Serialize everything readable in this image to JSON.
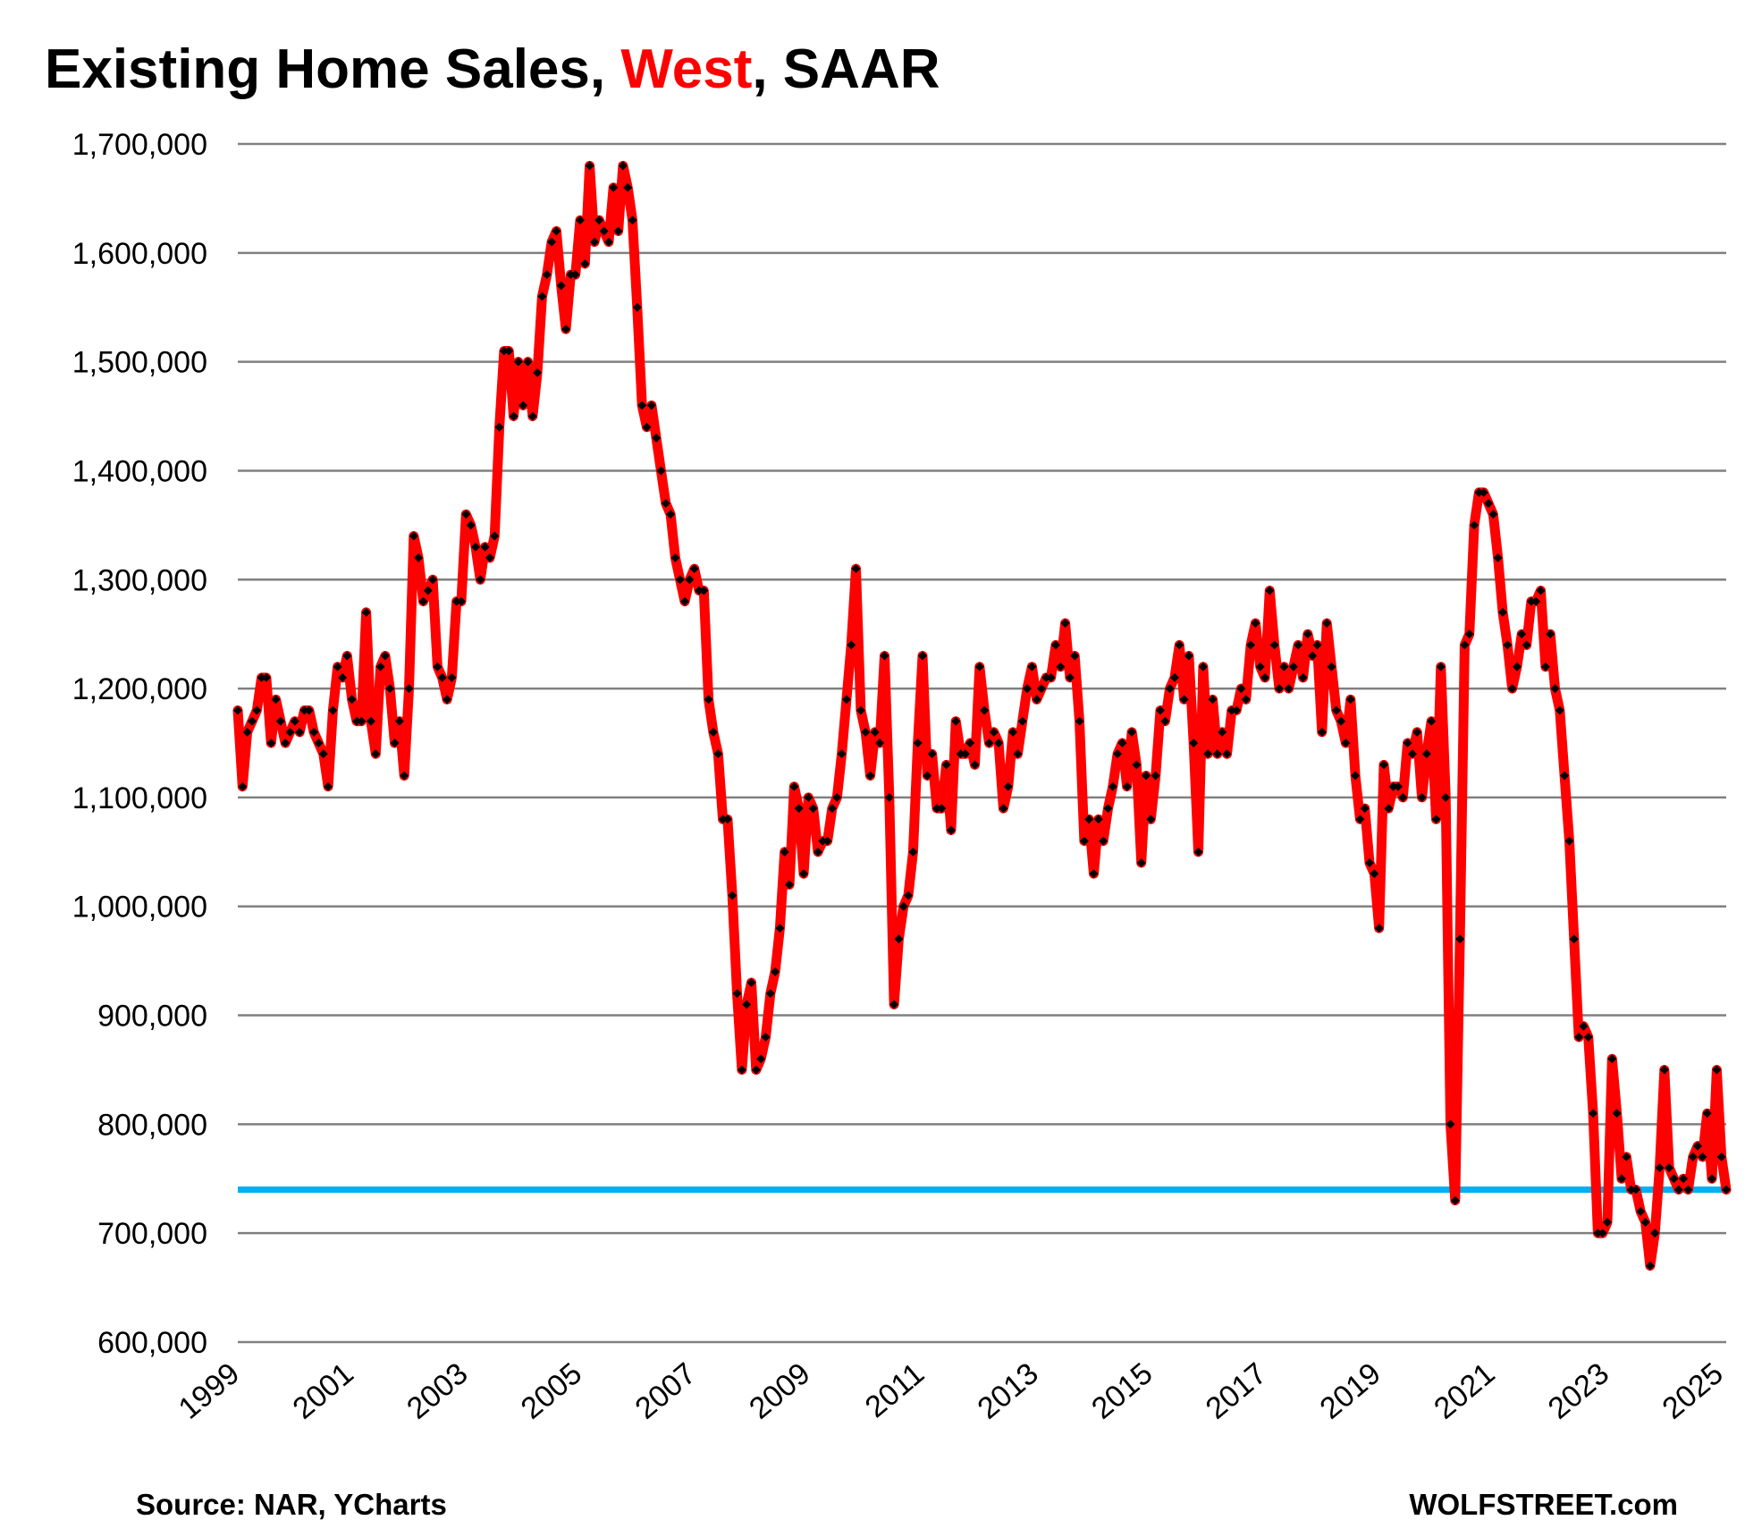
{
  "chart_data": {
    "type": "line",
    "title": {
      "prefix": "Existing Home Sales, ",
      "highlight": "West",
      "suffix": ", SAAR"
    },
    "xlabel": "",
    "ylabel": "",
    "ylim": [
      600000,
      1700000
    ],
    "yticks": [
      600000,
      700000,
      800000,
      900000,
      1000000,
      1100000,
      1200000,
      1300000,
      1400000,
      1500000,
      1600000,
      1700000
    ],
    "ytick_labels": [
      "600,000",
      "700,000",
      "800,000",
      "900,000",
      "1,000,000",
      "1,100,000",
      "1,200,000",
      "1,300,000",
      "1,400,000",
      "1,500,000",
      "1,600,000",
      "1,700,000"
    ],
    "xtick_labels": [
      "1999",
      "2001",
      "2003",
      "2005",
      "2007",
      "2009",
      "2011",
      "2013",
      "2015",
      "2017",
      "2019",
      "2021",
      "2023",
      "2025"
    ],
    "x_start": "1999-01",
    "x_frequency": "monthly",
    "grid": true,
    "legend": "none",
    "reference_line": {
      "value": 740000,
      "color": "#00B0F0"
    },
    "series": [
      {
        "name": "Existing Home Sales, West, SAAR",
        "color": "#FF0000",
        "marker_color": "#000000",
        "values": [
          1180000,
          1110000,
          1160000,
          1170000,
          1180000,
          1210000,
          1210000,
          1150000,
          1190000,
          1170000,
          1150000,
          1160000,
          1170000,
          1160000,
          1180000,
          1180000,
          1160000,
          1150000,
          1140000,
          1110000,
          1180000,
          1220000,
          1210000,
          1230000,
          1190000,
          1170000,
          1170000,
          1270000,
          1170000,
          1140000,
          1220000,
          1230000,
          1200000,
          1150000,
          1170000,
          1120000,
          1200000,
          1340000,
          1320000,
          1280000,
          1290000,
          1300000,
          1220000,
          1210000,
          1190000,
          1210000,
          1280000,
          1280000,
          1360000,
          1350000,
          1330000,
          1300000,
          1330000,
          1320000,
          1340000,
          1440000,
          1510000,
          1510000,
          1450000,
          1500000,
          1460000,
          1500000,
          1450000,
          1490000,
          1560000,
          1580000,
          1610000,
          1620000,
          1570000,
          1530000,
          1580000,
          1580000,
          1630000,
          1590000,
          1680000,
          1610000,
          1630000,
          1620000,
          1610000,
          1660000,
          1620000,
          1680000,
          1660000,
          1630000,
          1550000,
          1460000,
          1440000,
          1460000,
          1430000,
          1400000,
          1370000,
          1360000,
          1320000,
          1300000,
          1280000,
          1300000,
          1310000,
          1290000,
          1290000,
          1190000,
          1160000,
          1140000,
          1080000,
          1080000,
          1010000,
          920000,
          850000,
          910000,
          930000,
          850000,
          860000,
          880000,
          920000,
          940000,
          980000,
          1050000,
          1020000,
          1110000,
          1090000,
          1030000,
          1100000,
          1090000,
          1050000,
          1060000,
          1060000,
          1090000,
          1100000,
          1140000,
          1190000,
          1240000,
          1310000,
          1180000,
          1160000,
          1120000,
          1160000,
          1150000,
          1230000,
          1100000,
          910000,
          970000,
          1000000,
          1010000,
          1050000,
          1150000,
          1230000,
          1120000,
          1140000,
          1090000,
          1090000,
          1130000,
          1070000,
          1170000,
          1140000,
          1140000,
          1150000,
          1130000,
          1220000,
          1180000,
          1150000,
          1160000,
          1150000,
          1090000,
          1110000,
          1160000,
          1140000,
          1170000,
          1200000,
          1220000,
          1190000,
          1200000,
          1210000,
          1210000,
          1240000,
          1220000,
          1260000,
          1210000,
          1230000,
          1170000,
          1060000,
          1080000,
          1030000,
          1080000,
          1060000,
          1090000,
          1110000,
          1140000,
          1150000,
          1110000,
          1160000,
          1130000,
          1040000,
          1120000,
          1080000,
          1120000,
          1180000,
          1170000,
          1200000,
          1210000,
          1240000,
          1190000,
          1230000,
          1150000,
          1050000,
          1220000,
          1140000,
          1190000,
          1140000,
          1160000,
          1140000,
          1180000,
          1180000,
          1200000,
          1190000,
          1240000,
          1260000,
          1220000,
          1210000,
          1290000,
          1240000,
          1200000,
          1220000,
          1200000,
          1220000,
          1240000,
          1210000,
          1250000,
          1230000,
          1240000,
          1160000,
          1260000,
          1220000,
          1180000,
          1170000,
          1150000,
          1190000,
          1120000,
          1080000,
          1090000,
          1040000,
          1030000,
          980000,
          1130000,
          1090000,
          1110000,
          1110000,
          1100000,
          1150000,
          1140000,
          1160000,
          1100000,
          1140000,
          1170000,
          1080000,
          1220000,
          1100000,
          800000,
          730000,
          970000,
          1240000,
          1250000,
          1350000,
          1380000,
          1380000,
          1370000,
          1360000,
          1320000,
          1270000,
          1240000,
          1200000,
          1220000,
          1250000,
          1240000,
          1280000,
          1280000,
          1290000,
          1220000,
          1250000,
          1200000,
          1180000,
          1120000,
          1060000,
          970000,
          880000,
          890000,
          880000,
          810000,
          700000,
          700000,
          710000,
          860000,
          810000,
          750000,
          770000,
          740000,
          740000,
          720000,
          710000,
          670000,
          700000,
          760000,
          850000,
          760000,
          750000,
          740000,
          750000,
          740000,
          770000,
          780000,
          770000,
          810000,
          750000,
          850000,
          770000,
          740000
        ]
      }
    ]
  },
  "footer": {
    "source": "Source: NAR, YCharts",
    "brand": "WOLFSTREET.com"
  }
}
